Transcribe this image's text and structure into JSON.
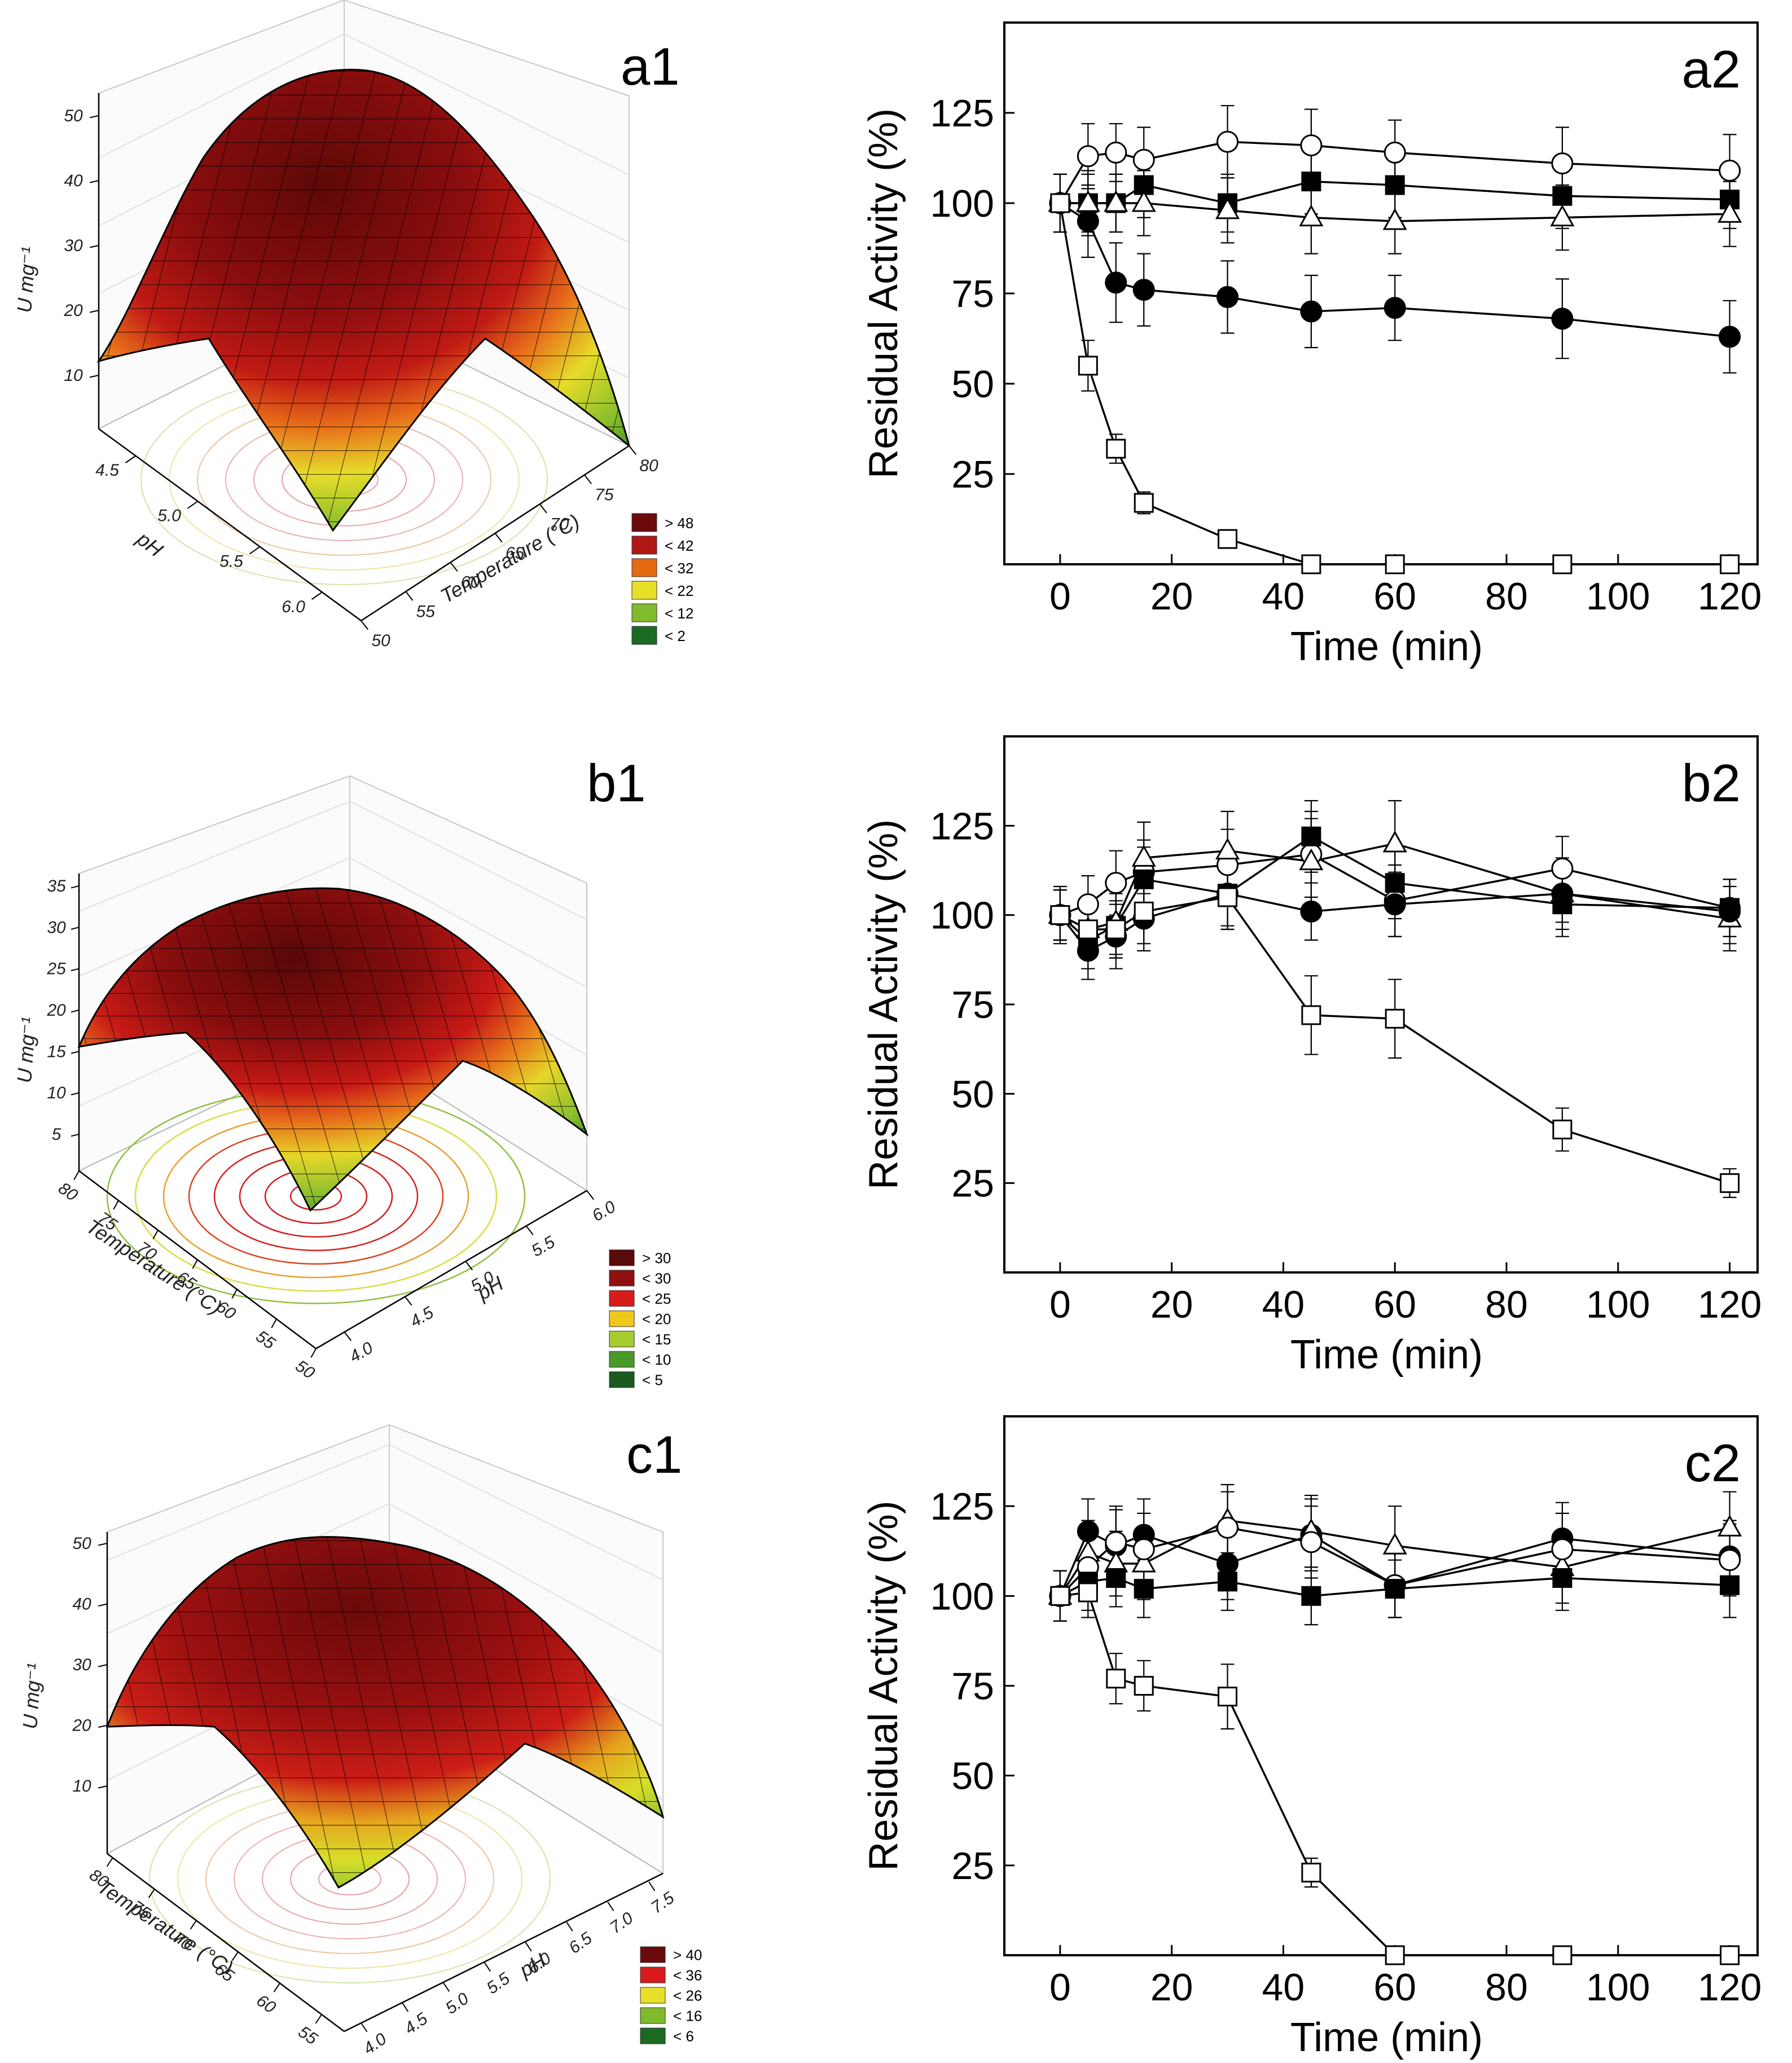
{
  "chart_data": [
    {
      "panel": "a1",
      "type": "surface",
      "zlabel": "U mg⁻¹",
      "zticks": [
        "10",
        "20",
        "30",
        "40",
        "50"
      ],
      "xlabel": "pH",
      "xticks": [
        "4.5",
        "5.0",
        "5.5",
        "6.0"
      ],
      "ylabel": "Temperature (°C)",
      "yticks": [
        "50",
        "55",
        "60",
        "65",
        "70",
        "75",
        "80"
      ],
      "legend": [
        {
          "label": "> 48",
          "color": "#6b0a0a"
        },
        {
          "label": "< 42",
          "color": "#b01818"
        },
        {
          "label": "< 32",
          "color": "#e66a12"
        },
        {
          "label": "< 22",
          "color": "#e8e028"
        },
        {
          "label": "< 12",
          "color": "#7fbb2c"
        },
        {
          "label": "< 2",
          "color": "#1b6a22"
        }
      ]
    },
    {
      "panel": "a2",
      "type": "line",
      "xlabel": "Time (min)",
      "ylabel": "Residual Activity (%)",
      "xlim": [
        -10,
        125
      ],
      "ylim": [
        0,
        150
      ],
      "xticks": [
        0,
        20,
        40,
        60,
        80,
        100,
        120
      ],
      "yticks": [
        25,
        50,
        75,
        100,
        125
      ],
      "series": [
        {
          "name": "open circle",
          "marker": "circle",
          "fill": "open",
          "x": [
            0,
            5,
            10,
            15,
            30,
            45,
            60,
            90,
            120
          ],
          "y": [
            100,
            113,
            114,
            112,
            117,
            116,
            114,
            111,
            109
          ],
          "err": [
            8,
            9,
            8,
            9,
            10,
            10,
            9,
            10,
            10
          ]
        },
        {
          "name": "filled square",
          "marker": "square",
          "fill": "filled",
          "x": [
            0,
            5,
            10,
            15,
            30,
            45,
            60,
            90,
            120
          ],
          "y": [
            100,
            100,
            100,
            105,
            100,
            106,
            105,
            102,
            101
          ],
          "err": [
            8,
            8,
            8,
            9,
            8,
            9,
            9,
            9,
            8
          ]
        },
        {
          "name": "open triangle",
          "marker": "triangle",
          "fill": "open",
          "x": [
            0,
            5,
            10,
            15,
            30,
            45,
            60,
            90,
            120
          ],
          "y": [
            100,
            100,
            100,
            100,
            98,
            96,
            95,
            96,
            97
          ],
          "err": [
            8,
            9,
            8,
            9,
            9,
            10,
            9,
            9,
            9
          ]
        },
        {
          "name": "filled circle",
          "marker": "circle",
          "fill": "filled",
          "x": [
            0,
            5,
            10,
            15,
            30,
            45,
            60,
            90,
            120
          ],
          "y": [
            100,
            95,
            78,
            76,
            74,
            70,
            71,
            68,
            63
          ],
          "err": [
            8,
            10,
            11,
            10,
            10,
            10,
            9,
            11,
            10
          ]
        },
        {
          "name": "open square",
          "marker": "square",
          "fill": "open",
          "x": [
            0,
            5,
            10,
            15,
            30,
            45,
            60,
            90,
            120
          ],
          "y": [
            100,
            55,
            32,
            17,
            7,
            0,
            0,
            0,
            0
          ],
          "err": [
            8,
            7,
            4,
            3,
            2,
            0,
            0,
            0,
            0
          ]
        }
      ]
    },
    {
      "panel": "b1",
      "type": "surface",
      "zlabel": "U mg⁻¹",
      "zticks": [
        "5",
        "10",
        "15",
        "20",
        "25",
        "30",
        "35"
      ],
      "xlabel": "Temperature (°C)",
      "xticks": [
        "80",
        "75",
        "70",
        "65",
        "60",
        "55",
        "50"
      ],
      "ylabel": "pH",
      "yticks": [
        "4.0",
        "4.5",
        "5.0",
        "5.5",
        "6.0"
      ],
      "legend": [
        {
          "label": "> 30",
          "color": "#5a0a0a"
        },
        {
          "label": "< 30",
          "color": "#8e1010"
        },
        {
          "label": "< 25",
          "color": "#d81c1c"
        },
        {
          "label": "< 20",
          "color": "#f0c81c"
        },
        {
          "label": "< 15",
          "color": "#a8cc30"
        },
        {
          "label": "< 10",
          "color": "#4a9a2a"
        },
        {
          "label": "< 5",
          "color": "#1b5a20"
        }
      ]
    },
    {
      "panel": "b2",
      "type": "line",
      "xlabel": "Time (min)",
      "ylabel": "Residual Activity (%)",
      "xlim": [
        -10,
        125
      ],
      "ylim": [
        0,
        150
      ],
      "xticks": [
        0,
        20,
        40,
        60,
        80,
        100,
        120
      ],
      "yticks": [
        25,
        50,
        75,
        100,
        125
      ],
      "series": [
        {
          "name": "open circle",
          "marker": "circle",
          "fill": "open",
          "x": [
            0,
            5,
            10,
            15,
            30,
            45,
            60,
            90,
            120
          ],
          "y": [
            100,
            103,
            109,
            112,
            114,
            117,
            104,
            113,
            102
          ],
          "err": [
            7,
            8,
            9,
            9,
            10,
            12,
            10,
            9,
            8
          ]
        },
        {
          "name": "filled square",
          "marker": "square",
          "fill": "filled",
          "x": [
            0,
            5,
            10,
            15,
            30,
            45,
            60,
            90,
            120
          ],
          "y": [
            100,
            93,
            97,
            110,
            106,
            122,
            109,
            103,
            102
          ],
          "err": [
            7,
            8,
            9,
            9,
            10,
            10,
            10,
            9,
            8
          ]
        },
        {
          "name": "open triangle",
          "marker": "triangle",
          "fill": "open",
          "x": [
            0,
            5,
            10,
            15,
            30,
            45,
            60,
            90,
            120
          ],
          "y": [
            100,
            96,
            98,
            116,
            118,
            115,
            120,
            106,
            99
          ],
          "err": [
            7,
            8,
            9,
            10,
            11,
            12,
            12,
            10,
            9
          ]
        },
        {
          "name": "filled circle",
          "marker": "circle",
          "fill": "filled",
          "x": [
            0,
            5,
            10,
            15,
            30,
            45,
            60,
            90,
            120
          ],
          "y": [
            100,
            90,
            94,
            99,
            106,
            101,
            103,
            106,
            101
          ],
          "err": [
            8,
            8,
            9,
            9,
            9,
            8,
            9,
            8,
            9
          ]
        },
        {
          "name": "open square",
          "marker": "square",
          "fill": "open",
          "x": [
            0,
            5,
            10,
            15,
            30,
            45,
            60,
            90,
            120
          ],
          "y": [
            100,
            96,
            96,
            101,
            105,
            72,
            71,
            40,
            25
          ],
          "err": [
            7,
            8,
            8,
            9,
            9,
            11,
            11,
            6,
            4
          ]
        }
      ]
    },
    {
      "panel": "c1",
      "type": "surface",
      "zlabel": "U mg⁻¹",
      "zticks": [
        "10",
        "20",
        "30",
        "40",
        "50"
      ],
      "xlabel": "Temperature (°C)",
      "xticks": [
        "80",
        "75",
        "70",
        "65",
        "60",
        "55"
      ],
      "ylabel": "pH",
      "yticks": [
        "4.0",
        "4.5",
        "5.0",
        "5.5",
        "6.0",
        "6.5",
        "7.0",
        "7.5"
      ],
      "legend": [
        {
          "label": "> 40",
          "color": "#6b0a0a"
        },
        {
          "label": "< 36",
          "color": "#d81c1c"
        },
        {
          "label": "< 26",
          "color": "#e8e028"
        },
        {
          "label": "< 16",
          "color": "#7fbb2c"
        },
        {
          "label": "< 6",
          "color": "#1b6a22"
        }
      ]
    },
    {
      "panel": "c2",
      "type": "line",
      "xlabel": "Time (min)",
      "ylabel": "Residual Activity (%)",
      "xlim": [
        -10,
        125
      ],
      "ylim": [
        0,
        150
      ],
      "xticks": [
        0,
        20,
        40,
        60,
        80,
        100,
        120
      ],
      "yticks": [
        25,
        50,
        75,
        100,
        125
      ],
      "series": [
        {
          "name": "filled circle",
          "marker": "circle",
          "fill": "filled",
          "x": [
            0,
            5,
            10,
            15,
            30,
            45,
            60,
            90,
            120
          ],
          "y": [
            100,
            118,
            114,
            117,
            109,
            117,
            103,
            116,
            111
          ],
          "err": [
            7,
            9,
            10,
            10,
            10,
            10,
            9,
            10,
            10
          ]
        },
        {
          "name": "open triangle",
          "marker": "triangle",
          "fill": "open",
          "x": [
            0,
            5,
            10,
            15,
            30,
            45,
            60,
            90,
            120
          ],
          "y": [
            100,
            112,
            109,
            109,
            121,
            118,
            114,
            108,
            119
          ],
          "err": [
            7,
            9,
            9,
            10,
            10,
            10,
            11,
            10,
            10
          ]
        },
        {
          "name": "open circle",
          "marker": "circle",
          "fill": "open",
          "x": [
            0,
            5,
            10,
            15,
            30,
            45,
            60,
            90,
            120
          ],
          "y": [
            100,
            108,
            115,
            113,
            119,
            115,
            103,
            113,
            110
          ],
          "err": [
            7,
            9,
            10,
            10,
            10,
            10,
            9,
            10,
            10
          ]
        },
        {
          "name": "filled square",
          "marker": "square",
          "fill": "filled",
          "x": [
            0,
            5,
            10,
            15,
            30,
            45,
            60,
            90,
            120
          ],
          "y": [
            100,
            104,
            105,
            102,
            104,
            100,
            102,
            105,
            103
          ],
          "err": [
            7,
            8,
            8,
            8,
            8,
            8,
            8,
            9,
            9
          ]
        },
        {
          "name": "open square",
          "marker": "square",
          "fill": "open",
          "x": [
            0,
            5,
            10,
            15,
            30,
            45,
            60,
            90,
            120
          ],
          "y": [
            100,
            101,
            77,
            75,
            72,
            23,
            0,
            0,
            0
          ],
          "err": [
            7,
            7,
            7,
            7,
            9,
            4,
            0,
            0,
            0
          ]
        }
      ]
    }
  ]
}
